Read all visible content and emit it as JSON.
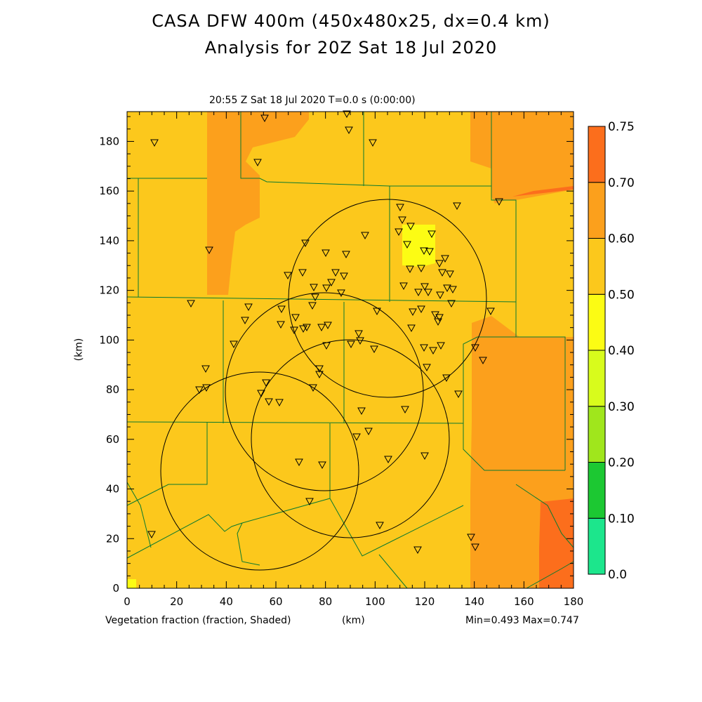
{
  "chart_data": {
    "type": "heatmap",
    "title": "CASA DFW 400m (450x480x25, dx=0.4 km)",
    "subtitle": "Analysis for 20Z Sat 18 Jul 2020",
    "time_label": "20:55 Z Sat 18 Jul 2020    T=0.0 s (0:00:00)",
    "xlabel": "(km)",
    "ylabel": "(km)",
    "field_label": "Vegetation fraction (fraction, Shaded)",
    "minmax": "Min=0.493 Max=0.747",
    "xlim": [
      0,
      180
    ],
    "ylim": [
      0,
      192
    ],
    "x_ticks": [
      "0",
      "20",
      "40",
      "60",
      "80",
      "100",
      "120",
      "140",
      "160",
      "180"
    ],
    "y_ticks": [
      "0",
      "20",
      "40",
      "60",
      "80",
      "100",
      "120",
      "140",
      "160",
      "180"
    ],
    "colorbar": {
      "levels": [
        "0.0",
        "0.10",
        "0.20",
        "0.30",
        "0.40",
        "0.50",
        "0.60",
        "0.70",
        "0.75"
      ],
      "colors": [
        "#1ce68c",
        "#1cc832",
        "#a0e61c",
        "#d8fc1c",
        "#fcfc14",
        "#fcc81c",
        "#fca01c",
        "#fc6e1c"
      ]
    },
    "min": 0.493,
    "max": 0.747,
    "radar_range_rings": 4
  }
}
